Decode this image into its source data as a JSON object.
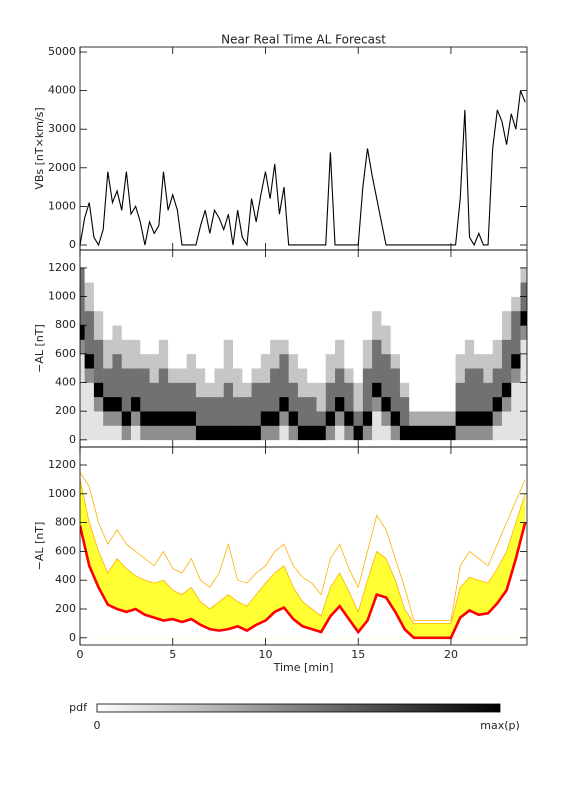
{
  "chart_data": [
    {
      "type": "line",
      "title": "Near Real Time AL Forecast",
      "y_label": "VBs [nT×km/s]",
      "x": [
        0,
        0.25,
        0.5,
        0.75,
        1,
        1.25,
        1.5,
        1.75,
        2,
        2.25,
        2.5,
        2.75,
        3,
        3.25,
        3.5,
        3.75,
        4,
        4.25,
        4.5,
        4.75,
        5,
        5.25,
        5.5,
        5.75,
        6,
        6.25,
        6.5,
        6.75,
        7,
        7.25,
        7.5,
        7.75,
        8,
        8.25,
        8.5,
        8.75,
        9,
        9.25,
        9.5,
        9.75,
        10,
        10.25,
        10.5,
        10.75,
        11,
        11.25,
        11.5,
        11.75,
        12,
        12.25,
        12.5,
        12.75,
        13,
        13.25,
        13.5,
        13.75,
        14,
        14.25,
        14.5,
        14.75,
        15,
        15.25,
        15.5,
        15.75,
        16,
        16.25,
        16.5,
        16.75,
        17,
        17.25,
        17.5,
        17.75,
        18,
        18.25,
        18.5,
        18.75,
        19,
        19.25,
        19.5,
        19.75,
        20,
        20.25,
        20.5,
        20.75,
        21,
        21.25,
        21.5,
        21.75,
        22,
        22.25,
        22.5,
        22.75,
        23,
        23.25,
        23.5,
        23.75,
        24
      ],
      "values": [
        0,
        700,
        1100,
        200,
        0,
        400,
        1900,
        1100,
        1400,
        900,
        1900,
        800,
        1000,
        600,
        0,
        600,
        300,
        500,
        1900,
        900,
        1300,
        900,
        0,
        0,
        0,
        0,
        500,
        900,
        300,
        900,
        700,
        400,
        800,
        0,
        900,
        200,
        0,
        1200,
        600,
        1300,
        1900,
        1200,
        2100,
        800,
        1500,
        0,
        0,
        0,
        0,
        0,
        0,
        0,
        0,
        0,
        2400,
        0,
        0,
        0,
        0,
        0,
        0,
        1500,
        2500,
        1800,
        1200,
        600,
        0,
        0,
        0,
        0,
        0,
        0,
        0,
        0,
        0,
        0,
        0,
        0,
        0,
        0,
        0,
        0,
        1200,
        3500,
        200,
        0,
        300,
        0,
        0,
        2500,
        3500,
        3200,
        2600,
        3400,
        3000,
        4000,
        3700
      ],
      "color": "#000000",
      "xlim": [
        0,
        24.1
      ],
      "ylim": [
        -130,
        5130
      ],
      "xticks": [
        0,
        5,
        10,
        15,
        20
      ],
      "yticks": [
        0,
        1000,
        2000,
        3000,
        4000,
        5000
      ],
      "show_xtick_labels": false
    },
    {
      "type": "heatmap",
      "y_label": "−AL [nT]",
      "xbins": [
        -0.25,
        0.25,
        0.75,
        1.25,
        1.75,
        2.25,
        2.75,
        3.25,
        3.75,
        4.25,
        4.75,
        5.25,
        5.75,
        6.25,
        6.75,
        7.25,
        7.75,
        8.25,
        8.75,
        9.25,
        9.75,
        10.25,
        10.75,
        11.25,
        11.75,
        12.25,
        12.75,
        13.25,
        13.75,
        14.25,
        14.75,
        15.25,
        15.75,
        16.25,
        16.75,
        17.25,
        17.75,
        18.25,
        18.75,
        19.25,
        19.75,
        20.25,
        20.75,
        21.25,
        21.75,
        22.25,
        22.75,
        23.25,
        23.75,
        24.25
      ],
      "ybins": [
        0,
        100,
        200,
        300,
        400,
        500,
        600,
        700,
        800,
        900,
        1000,
        1100,
        1200
      ],
      "z": [
        [
          1,
          1,
          1,
          1,
          1,
          1,
          4,
          9,
          5,
          5,
          5,
          5
        ],
        [
          1,
          1,
          1,
          1,
          4,
          9,
          5,
          5,
          5,
          2,
          2,
          0
        ],
        [
          1,
          1,
          4,
          9,
          5,
          5,
          5,
          2,
          2,
          0,
          0,
          0
        ],
        [
          1,
          4,
          9,
          5,
          5,
          2,
          2,
          0,
          0,
          0,
          0,
          0
        ],
        [
          1,
          4,
          9,
          5,
          5,
          5,
          2,
          2,
          0,
          0,
          0,
          0
        ],
        [
          4,
          9,
          5,
          5,
          5,
          2,
          2,
          0,
          0,
          0,
          0,
          0
        ],
        [
          1,
          4,
          9,
          5,
          5,
          2,
          2,
          0,
          0,
          0,
          0,
          0
        ],
        [
          4,
          9,
          5,
          5,
          5,
          2,
          0,
          0,
          0,
          0,
          0,
          0
        ],
        [
          4,
          9,
          5,
          5,
          2,
          2,
          0,
          0,
          0,
          0,
          0,
          0
        ],
        [
          4,
          9,
          5,
          5,
          5,
          2,
          2,
          0,
          0,
          0,
          0,
          0
        ],
        [
          4,
          9,
          5,
          5,
          2,
          0,
          0,
          0,
          0,
          0,
          0,
          0
        ],
        [
          4,
          9,
          5,
          5,
          2,
          0,
          0,
          0,
          0,
          0,
          0,
          0
        ],
        [
          4,
          9,
          5,
          5,
          2,
          2,
          0,
          0,
          0,
          0,
          0,
          0
        ],
        [
          9,
          5,
          5,
          2,
          2,
          0,
          0,
          0,
          0,
          0,
          0,
          0
        ],
        [
          9,
          5,
          5,
          2,
          0,
          0,
          0,
          0,
          0,
          0,
          0,
          0
        ],
        [
          9,
          5,
          5,
          2,
          2,
          0,
          0,
          0,
          0,
          0,
          0,
          0
        ],
        [
          9,
          5,
          5,
          5,
          2,
          2,
          2,
          0,
          0,
          0,
          0,
          0
        ],
        [
          9,
          5,
          5,
          2,
          2,
          0,
          0,
          0,
          0,
          0,
          0,
          0
        ],
        [
          9,
          5,
          5,
          2,
          0,
          0,
          0,
          0,
          0,
          0,
          0,
          0
        ],
        [
          9,
          5,
          5,
          5,
          2,
          0,
          0,
          0,
          0,
          0,
          0,
          0
        ],
        [
          4,
          9,
          5,
          5,
          2,
          2,
          0,
          0,
          0,
          0,
          0,
          0
        ],
        [
          4,
          9,
          5,
          5,
          5,
          2,
          2,
          0,
          0,
          0,
          0,
          0
        ],
        [
          1,
          4,
          9,
          5,
          5,
          5,
          2,
          0,
          0,
          0,
          0,
          0
        ],
        [
          4,
          9,
          5,
          5,
          2,
          2,
          0,
          0,
          0,
          0,
          0,
          0
        ],
        [
          9,
          5,
          5,
          2,
          2,
          0,
          0,
          0,
          0,
          0,
          0,
          0
        ],
        [
          9,
          5,
          5,
          2,
          0,
          0,
          0,
          0,
          0,
          0,
          0,
          0
        ],
        [
          9,
          5,
          2,
          2,
          0,
          0,
          0,
          0,
          0,
          0,
          0,
          0
        ],
        [
          4,
          9,
          5,
          5,
          2,
          2,
          0,
          0,
          0,
          0,
          0,
          0
        ],
        [
          1,
          4,
          9,
          5,
          5,
          2,
          2,
          0,
          0,
          0,
          0,
          0
        ],
        [
          4,
          9,
          5,
          5,
          2,
          0,
          0,
          0,
          0,
          0,
          0,
          0
        ],
        [
          9,
          5,
          2,
          2,
          0,
          0,
          0,
          0,
          0,
          0,
          0,
          0
        ],
        [
          4,
          9,
          5,
          5,
          5,
          2,
          2,
          0,
          0,
          0,
          0,
          0
        ],
        [
          1,
          1,
          4,
          9,
          5,
          5,
          5,
          2,
          2,
          0,
          0,
          0
        ],
        [
          1,
          4,
          9,
          5,
          5,
          5,
          2,
          2,
          0,
          0,
          0,
          0
        ],
        [
          4,
          9,
          5,
          5,
          5,
          2,
          0,
          0,
          0,
          0,
          0,
          0
        ],
        [
          9,
          5,
          5,
          2,
          0,
          0,
          0,
          0,
          0,
          0,
          0,
          0
        ],
        [
          9,
          3,
          0,
          0,
          0,
          0,
          0,
          0,
          0,
          0,
          0,
          0
        ],
        [
          9,
          3,
          0,
          0,
          0,
          0,
          0,
          0,
          0,
          0,
          0,
          0
        ],
        [
          9,
          3,
          0,
          0,
          0,
          0,
          0,
          0,
          0,
          0,
          0,
          0
        ],
        [
          9,
          3,
          0,
          0,
          0,
          0,
          0,
          0,
          0,
          0,
          0,
          0
        ],
        [
          9,
          3,
          0,
          0,
          0,
          0,
          0,
          0,
          0,
          0,
          0,
          0
        ],
        [
          4,
          9,
          5,
          5,
          2,
          2,
          0,
          0,
          0,
          0,
          0,
          0
        ],
        [
          4,
          9,
          5,
          5,
          5,
          2,
          2,
          0,
          0,
          0,
          0,
          0
        ],
        [
          4,
          9,
          5,
          5,
          5,
          2,
          0,
          0,
          0,
          0,
          0,
          0
        ],
        [
          4,
          9,
          5,
          5,
          2,
          2,
          0,
          0,
          0,
          0,
          0,
          0
        ],
        [
          1,
          4,
          9,
          5,
          5,
          2,
          2,
          0,
          0,
          0,
          0,
          0
        ],
        [
          1,
          1,
          4,
          9,
          5,
          5,
          5,
          2,
          2,
          0,
          0,
          0
        ],
        [
          1,
          1,
          1,
          1,
          4,
          9,
          5,
          5,
          5,
          2,
          0,
          0
        ],
        [
          1,
          1,
          1,
          1,
          1,
          1,
          1,
          4,
          9,
          5,
          5,
          2
        ]
      ],
      "zlim": [
        0,
        9
      ],
      "colors": [
        "#ffffff",
        "#000000"
      ],
      "xlim": [
        0,
        24.1
      ],
      "ylim": [
        -50,
        1325
      ],
      "xticks": [
        0,
        5,
        10,
        15,
        20
      ],
      "yticks": [
        0,
        200,
        400,
        600,
        800,
        1000,
        1200
      ],
      "show_xtick_labels": false
    },
    {
      "type": "band",
      "y_label": "−AL [nT]",
      "x_label": "Time [min]",
      "x": [
        0,
        0.5,
        1,
        1.5,
        2,
        2.5,
        3,
        3.5,
        4,
        4.5,
        5,
        5.5,
        6,
        6.5,
        7,
        7.5,
        8,
        8.5,
        9,
        9.5,
        10,
        10.5,
        11,
        11.5,
        12,
        12.5,
        13,
        13.5,
        14,
        14.5,
        15,
        15.5,
        16,
        16.5,
        17,
        17.5,
        18,
        18.5,
        19,
        19.5,
        20,
        20.5,
        21,
        21.5,
        22,
        22.5,
        23,
        23.5,
        24
      ],
      "series": [
        {
          "color": "#ff0000",
          "style": "median",
          "values": [
            780,
            500,
            350,
            230,
            200,
            180,
            200,
            160,
            140,
            120,
            130,
            110,
            130,
            90,
            60,
            50,
            60,
            80,
            50,
            90,
            120,
            180,
            210,
            130,
            80,
            60,
            40,
            150,
            220,
            130,
            40,
            120,
            300,
            280,
            180,
            60,
            0,
            0,
            0,
            0,
            0,
            140,
            190,
            160,
            170,
            240,
            330,
            550,
            800
          ]
        },
        {
          "color": "#ffff33",
          "style": "fill",
          "values": [
            1100,
            800,
            600,
            450,
            550,
            480,
            430,
            400,
            380,
            400,
            330,
            300,
            350,
            250,
            200,
            250,
            300,
            250,
            220,
            300,
            380,
            450,
            500,
            350,
            250,
            200,
            150,
            350,
            450,
            320,
            180,
            400,
            600,
            550,
            400,
            200,
            100,
            100,
            100,
            100,
            100,
            350,
            420,
            400,
            380,
            480,
            600,
            800,
            1000
          ]
        },
        {
          "color": "#ffb000",
          "style": "line",
          "values": [
            1150,
            1050,
            800,
            650,
            750,
            650,
            600,
            550,
            500,
            600,
            480,
            450,
            550,
            400,
            350,
            450,
            650,
            400,
            380,
            450,
            500,
            600,
            650,
            500,
            420,
            380,
            300,
            550,
            650,
            480,
            350,
            600,
            850,
            750,
            550,
            350,
            120,
            120,
            120,
            120,
            120,
            500,
            600,
            550,
            500,
            650,
            800,
            950,
            1100
          ]
        }
      ],
      "xlim": [
        0,
        24.1
      ],
      "ylim": [
        -50,
        1325
      ],
      "xticks": [
        0,
        5,
        10,
        15,
        20
      ],
      "yticks": [
        0,
        200,
        400,
        600,
        800,
        1000,
        1200
      ],
      "show_xtick_labels": true
    }
  ],
  "colorbar": {
    "label": "pdf",
    "min_label": "0",
    "max_label": "max(p)"
  }
}
